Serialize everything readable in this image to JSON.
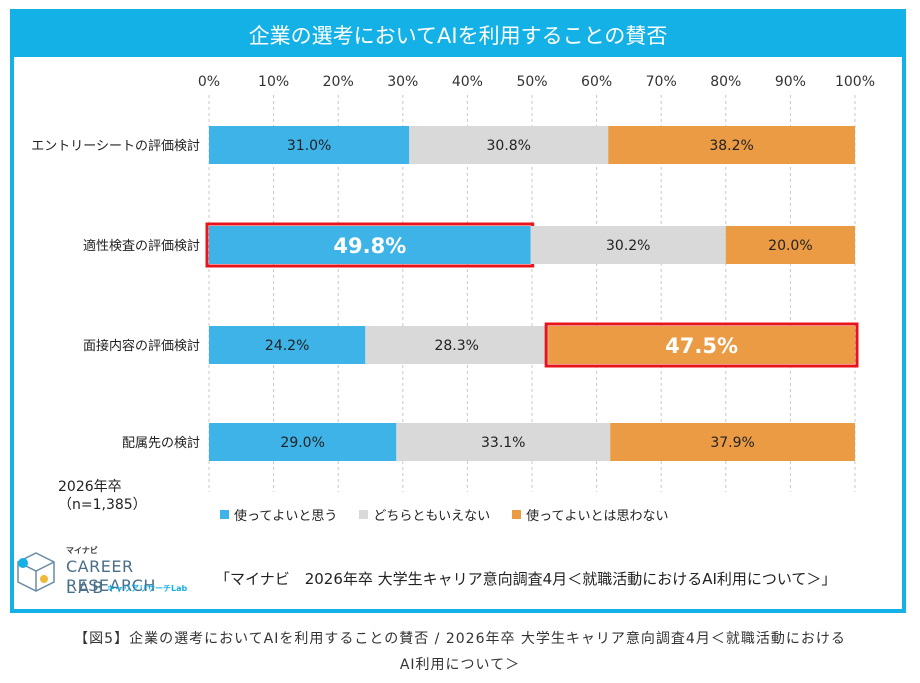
{
  "title": "企業の選考においてAIを利用することの賛否",
  "chart_data": {
    "type": "bar",
    "orientation": "horizontal",
    "stacked": true,
    "percent_axis_ticks": [
      "0%",
      "10%",
      "20%",
      "30%",
      "40%",
      "50%",
      "60%",
      "70%",
      "80%",
      "90%",
      "100%"
    ],
    "categories": [
      "エントリーシートの評価検討",
      "適性検査の評価検討",
      "面接内容の評価検討",
      "配属先の検討"
    ],
    "series": [
      {
        "name": "使ってよいと思う",
        "color": "#3eb3e8",
        "values": [
          31.0,
          49.8,
          24.2,
          29.0
        ],
        "labels": [
          "31.0%",
          "49.8%",
          "24.2%",
          "29.0%"
        ]
      },
      {
        "name": "どちらともいえない",
        "color": "#d9d9d9",
        "values": [
          30.8,
          30.2,
          28.3,
          33.1
        ],
        "labels": [
          "30.8%",
          "30.2%",
          "28.3%",
          "33.1%"
        ]
      },
      {
        "name": "使ってよいとは思わない",
        "color": "#ec9b45",
        "values": [
          38.2,
          20.0,
          47.5,
          37.9
        ],
        "labels": [
          "38.2%",
          "20.0%",
          "47.5%",
          "37.9%"
        ]
      }
    ],
    "highlights": [
      {
        "category_index": 1,
        "series_index": 0
      },
      {
        "category_index": 2,
        "series_index": 2
      }
    ],
    "xlim": [
      0,
      100
    ],
    "grid": "vertical dashed",
    "legend_position": "bottom"
  },
  "sample": {
    "year": "2026年卒",
    "n": "（n=1,385）"
  },
  "logo": {
    "small": "マイナビ",
    "main": "CAREER RESEARCH",
    "lab": "LAB",
    "sub": "キャリアリサーチLab"
  },
  "source": "「マイナビ　2026年卒 大学生キャリア意向調査4月＜就職活動におけるAI利用について＞」",
  "caption_line1": "【図5】企業の選考においてAIを利用することの賛否 / 2026年卒 大学生キャリア意向調査4月＜就職活動における",
  "caption_line2": "AI利用について＞"
}
